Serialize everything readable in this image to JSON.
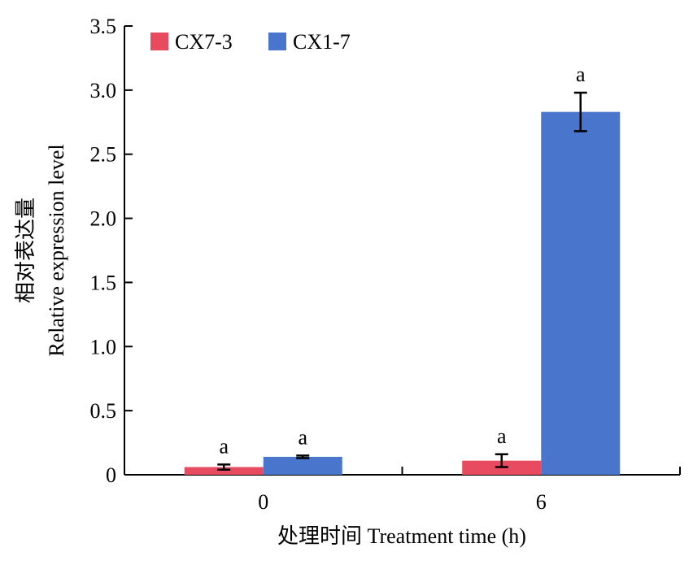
{
  "chart_data": {
    "type": "bar",
    "categories": [
      "0",
      "6"
    ],
    "series": [
      {
        "name": "CX7-3",
        "color": "#e84a5f",
        "values": [
          0.06,
          0.11
        ],
        "errors": [
          0.02,
          0.05
        ],
        "sig": [
          "a",
          "a"
        ]
      },
      {
        "name": "CX1-7",
        "color": "#4a75cd",
        "values": [
          0.14,
          2.83
        ],
        "errors": [
          0.01,
          0.15
        ],
        "sig": [
          "a",
          "a"
        ]
      }
    ],
    "xlabel": "处理时间 Treatment time (h)",
    "ylabel_lines": [
      "相对表达量",
      "Relative expression level"
    ],
    "ylim": [
      0,
      3.5
    ],
    "yticks": [
      0,
      0.5,
      1.0,
      1.5,
      2.0,
      2.5,
      3.0,
      3.5
    ],
    "ytick_labels": [
      "0",
      "0.5",
      "1.0",
      "1.5",
      "2.0",
      "2.5",
      "3.0",
      "3.5"
    ],
    "legend_position": "top-left",
    "grid": false
  }
}
